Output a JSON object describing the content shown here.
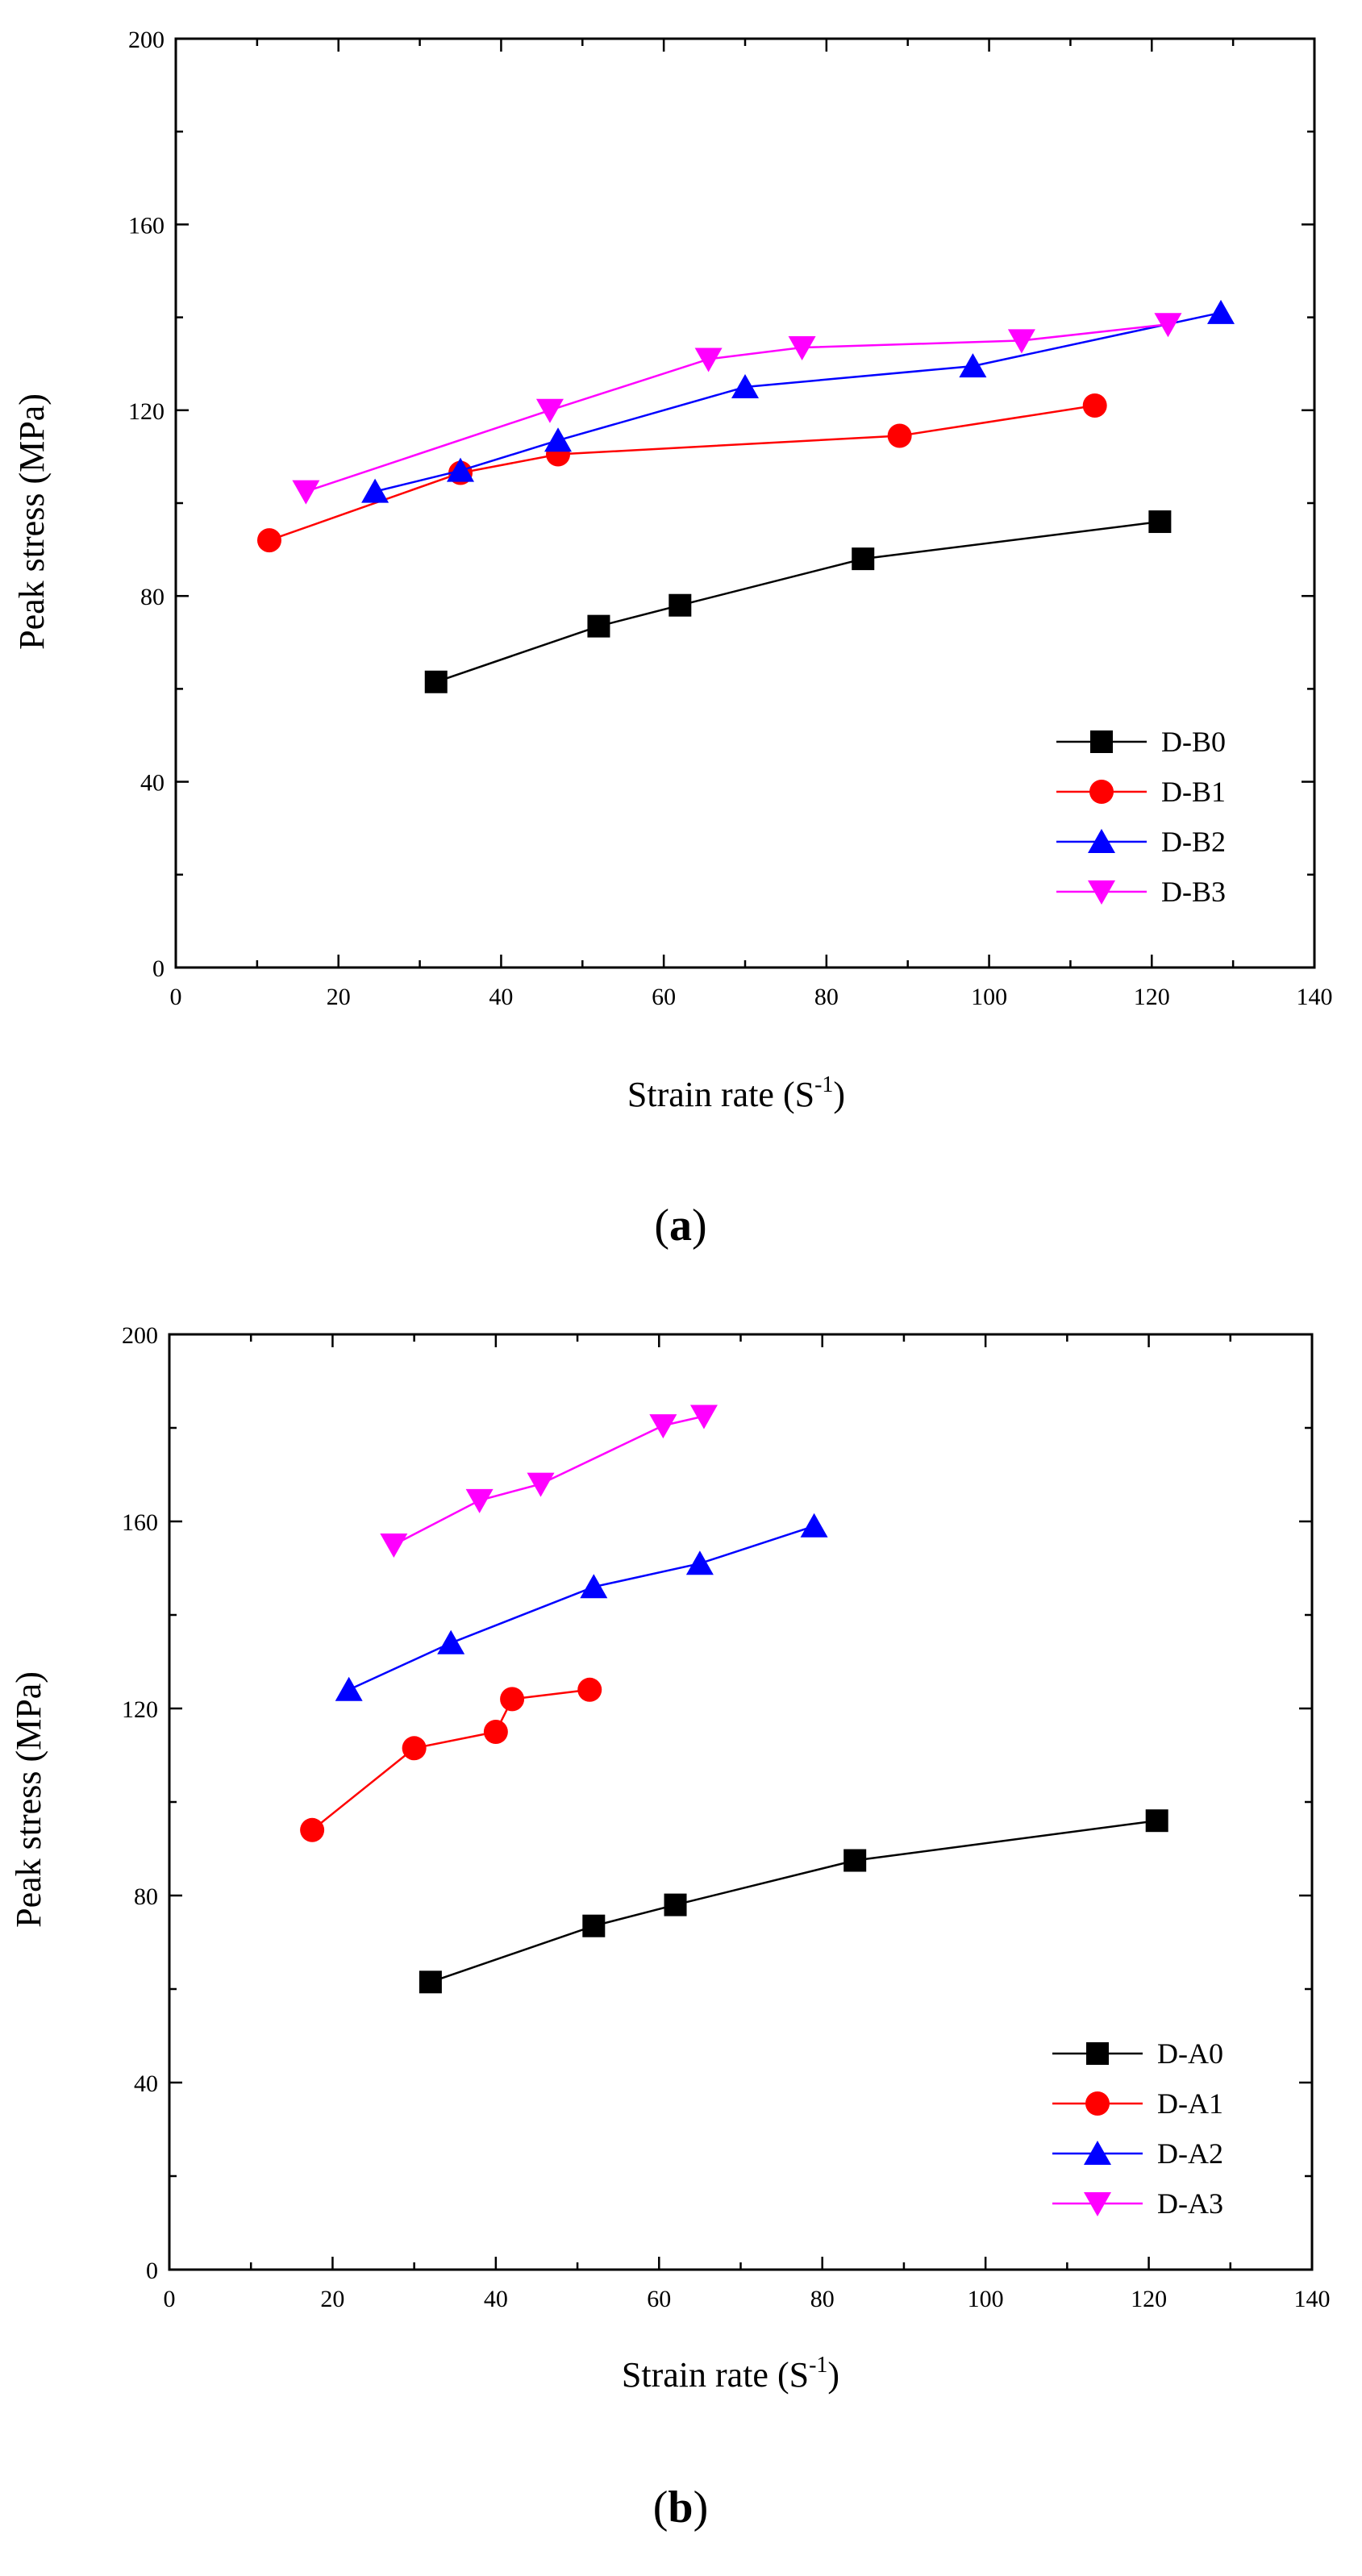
{
  "chart_data": [
    {
      "type": "line",
      "panel_label": "a",
      "xlabel": "Strain rate (S",
      "xlabel_sup": "-1",
      "xlabel_end": ")",
      "ylabel": "Peak stress (MPa)",
      "xlim": [
        0,
        140
      ],
      "ylim": [
        0,
        200
      ],
      "xticks": [
        "0",
        "20",
        "40",
        "60",
        "80",
        "100",
        "120",
        "140"
      ],
      "yticks": [
        "0",
        "40",
        "80",
        "120",
        "160",
        "200"
      ],
      "legend_position": "bottom-right",
      "series": [
        {
          "name": "D-B0",
          "color": "#000000",
          "marker": "square",
          "x": [
            32,
            52,
            62,
            84.5,
            121
          ],
          "y": [
            61.5,
            73.5,
            78,
            88,
            96
          ]
        },
        {
          "name": "D-B1",
          "color": "#ff0000",
          "marker": "circle",
          "x": [
            11.5,
            35,
            47,
            89,
            113
          ],
          "y": [
            92,
            106.5,
            110.5,
            114.5,
            121
          ]
        },
        {
          "name": "D-B2",
          "color": "#0000ff",
          "marker": "triangle-up",
          "x": [
            24.5,
            35,
            47,
            70,
            98,
            128.5
          ],
          "y": [
            102.5,
            107,
            113.5,
            125,
            129.5,
            141
          ]
        },
        {
          "name": "D-B3",
          "color": "#ff00ff",
          "marker": "triangle-down",
          "x": [
            16,
            46,
            65.5,
            77,
            104,
            122
          ],
          "y": [
            102.5,
            120,
            131,
            133.5,
            135,
            138.5
          ]
        }
      ]
    },
    {
      "type": "line",
      "panel_label": "b",
      "xlabel": "Strain rate (S",
      "xlabel_sup": "-1",
      "xlabel_end": ")",
      "ylabel": "Peak stress (MPa)",
      "xlim": [
        0,
        140
      ],
      "ylim": [
        0,
        200
      ],
      "xticks": [
        "0",
        "20",
        "40",
        "60",
        "80",
        "100",
        "120",
        "140"
      ],
      "yticks": [
        "0",
        "40",
        "80",
        "120",
        "160",
        "200"
      ],
      "legend_position": "bottom-right",
      "series": [
        {
          "name": "D-A0",
          "color": "#000000",
          "marker": "square",
          "x": [
            32,
            52,
            62,
            84,
            121
          ],
          "y": [
            61.5,
            73.5,
            78,
            87.5,
            96
          ]
        },
        {
          "name": "D-A1",
          "color": "#ff0000",
          "marker": "circle",
          "x": [
            17.5,
            30,
            40,
            42,
            51.5
          ],
          "y": [
            94,
            111.5,
            115,
            122,
            124
          ]
        },
        {
          "name": "D-A2",
          "color": "#0000ff",
          "marker": "triangle-up",
          "x": [
            22,
            34.5,
            52,
            65,
            79
          ],
          "y": [
            124,
            134,
            146,
            151,
            159
          ]
        },
        {
          "name": "D-A3",
          "color": "#ff00ff",
          "marker": "triangle-down",
          "x": [
            27.5,
            38,
            45.5,
            60.5,
            65.5
          ],
          "y": [
            155,
            164.5,
            168,
            180.5,
            182.5
          ]
        }
      ]
    }
  ]
}
